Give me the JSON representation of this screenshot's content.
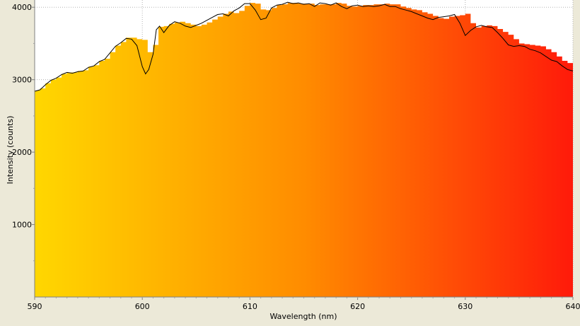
{
  "chart_data": {
    "type": "area",
    "xlabel": "Wavelength (nm)",
    "ylabel": "Intensity (counts)",
    "xlim": [
      590,
      640
    ],
    "ylim": [
      0,
      4100
    ],
    "x_ticks": [
      590,
      600,
      610,
      620,
      630,
      640
    ],
    "y_ticks": [
      1000,
      2000,
      3000,
      4000
    ],
    "grid": "dotted vertical and horizontal lines at ticks",
    "gradient_colors": [
      "#ffd700",
      "#ff8c00",
      "#ff1a0a"
    ],
    "series": [
      {
        "kind": "stepped-area",
        "x": [
          590.0,
          590.5,
          591.0,
          591.5,
          592.0,
          592.5,
          593.0,
          593.5,
          594.0,
          594.5,
          595.0,
          595.5,
          596.0,
          596.5,
          597.0,
          597.5,
          598.0,
          598.5,
          599.0,
          599.5,
          600.0,
          600.5,
          601.0,
          601.5,
          602.0,
          602.5,
          603.0,
          603.5,
          604.0,
          604.5,
          605.0,
          605.5,
          606.0,
          606.5,
          607.0,
          607.5,
          608.0,
          608.5,
          609.0,
          609.5,
          610.0,
          610.5,
          611.0,
          611.5,
          612.0,
          612.5,
          613.0,
          613.5,
          614.0,
          614.5,
          615.0,
          615.5,
          616.0,
          616.5,
          617.0,
          617.5,
          618.0,
          618.5,
          619.0,
          619.5,
          620.0,
          620.5,
          621.0,
          621.5,
          622.0,
          622.5,
          623.0,
          623.5,
          624.0,
          624.5,
          625.0,
          625.5,
          626.0,
          626.5,
          627.0,
          627.5,
          628.0,
          628.5,
          629.0,
          629.5,
          630.0,
          630.5,
          631.0,
          631.5,
          632.0,
          632.5,
          633.0,
          633.5,
          634.0,
          634.5,
          635.0,
          635.5,
          636.0,
          636.5,
          637.0,
          637.5,
          638.0,
          638.5,
          639.0,
          639.5
        ],
        "y": [
          2850,
          2880,
          2950,
          3000,
          3030,
          3080,
          3100,
          3100,
          3120,
          3130,
          3180,
          3200,
          3260,
          3290,
          3380,
          3470,
          3520,
          3580,
          3580,
          3560,
          3550,
          3380,
          3480,
          3730,
          3740,
          3770,
          3790,
          3800,
          3780,
          3760,
          3740,
          3760,
          3790,
          3830,
          3870,
          3910,
          3940,
          3920,
          3950,
          4020,
          4060,
          4050,
          3970,
          3960,
          3990,
          4030,
          4040,
          4060,
          4060,
          4050,
          4050,
          4050,
          4030,
          4040,
          4040,
          4040,
          4060,
          4050,
          4020,
          4010,
          4020,
          4030,
          4030,
          4040,
          4040,
          4050,
          4040,
          4040,
          4010,
          3990,
          3970,
          3960,
          3930,
          3910,
          3880,
          3850,
          3840,
          3870,
          3880,
          3890,
          3910,
          3780,
          3720,
          3740,
          3750,
          3740,
          3700,
          3660,
          3620,
          3560,
          3500,
          3490,
          3480,
          3470,
          3460,
          3420,
          3380,
          3320,
          3260,
          3230
        ]
      },
      {
        "kind": "line",
        "color": "#000000",
        "x": [
          590.0,
          590.5,
          591.0,
          591.5,
          592.0,
          592.5,
          593.0,
          593.5,
          594.0,
          594.5,
          595.0,
          595.5,
          596.0,
          596.5,
          597.0,
          597.5,
          598.0,
          598.5,
          599.0,
          599.5,
          600.0,
          600.3,
          600.6,
          601.0,
          601.3,
          601.6,
          602.0,
          602.5,
          603.0,
          603.5,
          604.0,
          604.5,
          605.0,
          605.5,
          606.0,
          606.5,
          607.0,
          607.5,
          608.0,
          608.5,
          609.0,
          609.5,
          610.0,
          610.5,
          611.0,
          611.5,
          612.0,
          612.5,
          613.0,
          613.5,
          614.0,
          614.5,
          615.0,
          615.5,
          616.0,
          616.5,
          617.0,
          617.5,
          618.0,
          618.5,
          619.0,
          619.5,
          620.0,
          620.5,
          621.0,
          621.5,
          622.0,
          622.5,
          623.0,
          623.5,
          624.0,
          624.5,
          625.0,
          625.5,
          626.0,
          626.5,
          627.0,
          627.5,
          628.0,
          628.5,
          629.0,
          629.5,
          630.0,
          630.5,
          631.0,
          631.5,
          632.0,
          632.5,
          633.0,
          633.5,
          634.0,
          634.5,
          635.0,
          635.5,
          636.0,
          636.5,
          637.0,
          637.5,
          638.0,
          638.5,
          639.0,
          639.5,
          640.0
        ],
        "y": [
          2840,
          2860,
          2930,
          2990,
          3020,
          3070,
          3100,
          3090,
          3110,
          3120,
          3170,
          3190,
          3250,
          3280,
          3370,
          3460,
          3510,
          3570,
          3560,
          3470,
          3180,
          3080,
          3140,
          3350,
          3690,
          3740,
          3650,
          3750,
          3800,
          3780,
          3740,
          3720,
          3750,
          3780,
          3820,
          3860,
          3900,
          3910,
          3880,
          3950,
          3990,
          4050,
          4050,
          3960,
          3830,
          3850,
          3990,
          4030,
          4040,
          4070,
          4050,
          4060,
          4040,
          4050,
          4010,
          4060,
          4050,
          4030,
          4060,
          4010,
          3980,
          4020,
          4030,
          4010,
          4020,
          4010,
          4020,
          4040,
          4010,
          4010,
          3980,
          3960,
          3940,
          3910,
          3880,
          3850,
          3830,
          3860,
          3870,
          3880,
          3900,
          3780,
          3610,
          3680,
          3730,
          3750,
          3730,
          3720,
          3650,
          3570,
          3480,
          3460,
          3470,
          3460,
          3420,
          3400,
          3370,
          3320,
          3270,
          3250,
          3190,
          3140,
          3120
        ]
      }
    ]
  }
}
